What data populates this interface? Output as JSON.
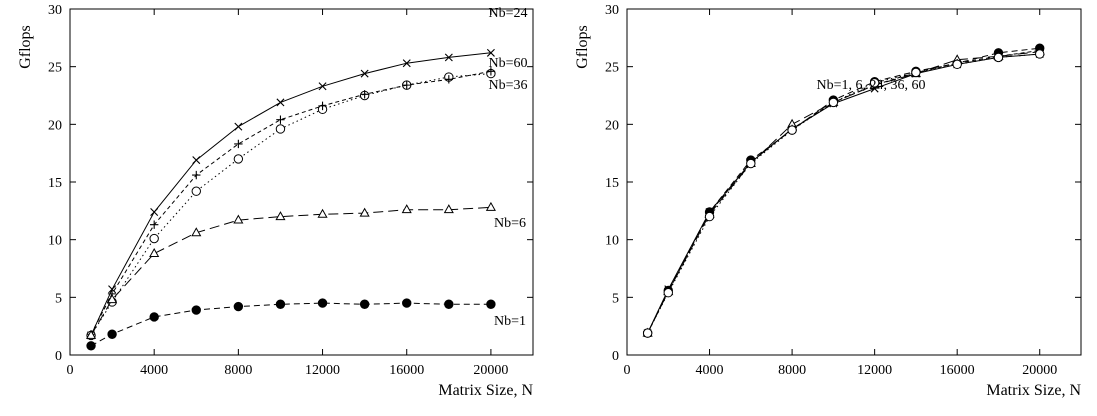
{
  "chart_data": [
    {
      "type": "line",
      "xlabel": "Matrix Size, N",
      "ylabel": "Gflops",
      "xlim": [
        0,
        22000
      ],
      "ylim": [
        0,
        30
      ],
      "xticks": [
        0,
        4000,
        8000,
        12000,
        16000,
        20000
      ],
      "yticks": [
        0,
        5,
        10,
        15,
        20,
        25,
        30
      ],
      "grid": false,
      "x": [
        1000,
        2000,
        4000,
        6000,
        8000,
        10000,
        12000,
        14000,
        16000,
        18000,
        20000
      ],
      "series": [
        {
          "name": "Nb=24",
          "marker": "x",
          "line": "solid",
          "values": [
            1.7,
            5.7,
            12.4,
            16.9,
            19.8,
            21.9,
            23.3,
            24.4,
            25.3,
            25.8,
            26.2
          ]
        },
        {
          "name": "Nb=60",
          "marker": "circle-open",
          "line": "dotted",
          "values": [
            1.7,
            4.6,
            10.1,
            14.2,
            17.0,
            19.6,
            21.3,
            22.5,
            23.4,
            24.1,
            24.4
          ]
        },
        {
          "name": "Nb=36",
          "marker": "plus",
          "line": "short-dash",
          "values": [
            1.8,
            5.3,
            11.3,
            15.6,
            18.3,
            20.4,
            21.6,
            22.6,
            23.4,
            23.9,
            24.6
          ]
        },
        {
          "name": "Nb=6",
          "marker": "triangle-open",
          "line": "long-dash",
          "values": [
            1.7,
            4.8,
            8.8,
            10.6,
            11.7,
            12.0,
            12.2,
            12.3,
            12.6,
            12.6,
            12.8
          ]
        },
        {
          "name": "Nb=1",
          "marker": "circle-filled",
          "line": "dashed",
          "values": [
            0.8,
            1.8,
            3.3,
            3.9,
            4.2,
            4.4,
            4.5,
            4.4,
            4.5,
            4.4,
            4.4
          ]
        }
      ]
    },
    {
      "type": "line",
      "xlabel": "Matrix Size, N",
      "ylabel": "Gflops",
      "xlim": [
        0,
        22000
      ],
      "ylim": [
        0,
        30
      ],
      "xticks": [
        0,
        4000,
        8000,
        12000,
        16000,
        20000
      ],
      "yticks": [
        0,
        5,
        10,
        15,
        20,
        25,
        30
      ],
      "grid": false,
      "annotation": "Nb=1, 6, 24, 36, 60",
      "x": [
        1000,
        2000,
        4000,
        6000,
        8000,
        10000,
        12000,
        14000,
        16000,
        18000,
        20000
      ],
      "series": [
        {
          "name": "Nb=1",
          "marker": "circle-filled",
          "line": "dashed",
          "values": [
            1.9,
            5.6,
            12.4,
            16.9,
            19.5,
            22.1,
            23.7,
            24.6,
            25.3,
            26.2,
            26.6
          ]
        },
        {
          "name": "Nb=6",
          "marker": "triangle-open",
          "line": "long-dash",
          "values": [
            1.9,
            5.5,
            12.2,
            16.6,
            20.0,
            21.9,
            23.4,
            24.4,
            25.6,
            25.9,
            26.3
          ]
        },
        {
          "name": "Nb=24",
          "marker": "x",
          "line": "solid",
          "values": [
            1.9,
            5.7,
            12.4,
            16.7,
            19.6,
            21.8,
            23.1,
            24.4,
            25.2,
            25.8,
            26.1
          ]
        },
        {
          "name": "Nb=36",
          "marker": "plus",
          "line": "short-dash",
          "values": [
            1.9,
            5.5,
            12.3,
            16.7,
            19.6,
            21.9,
            23.4,
            24.5,
            25.3,
            25.9,
            26.4
          ]
        },
        {
          "name": "Nb=60",
          "marker": "circle-open",
          "line": "dotted",
          "values": [
            1.9,
            5.4,
            12.0,
            16.6,
            19.5,
            21.9,
            23.6,
            24.5,
            25.2,
            25.8,
            26.1
          ]
        }
      ]
    }
  ]
}
